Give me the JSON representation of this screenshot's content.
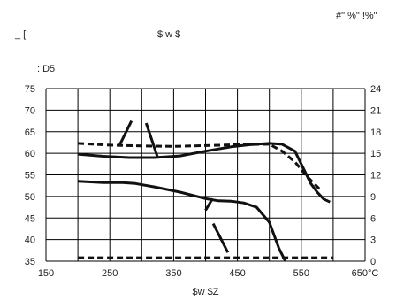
{
  "header": {
    "top_right": "#\" %\"     !%\"",
    "line2_left": "_ [",
    "line2_mid": "$   w $",
    "unit_label": ": D5",
    "right_axis_mark": "."
  },
  "chart_data": {
    "type": "line",
    "title": "",
    "xlabel": "$w $Z",
    "ylabel": ": D5",
    "x_ticks": [
      "150",
      "250",
      "350",
      "450",
      "550",
      "650°C"
    ],
    "y_left_ticks": [
      "75",
      "70",
      "65",
      "60",
      "55",
      "50",
      "45",
      "40",
      "35"
    ],
    "y_right_ticks": [
      "24",
      "21",
      "18",
      "15",
      "12",
      "9",
      "6",
      "3",
      "0"
    ],
    "xlim": [
      150,
      650
    ],
    "ylim_left": [
      35,
      75
    ],
    "ylim_right": [
      0,
      24
    ],
    "grid": true,
    "series": [
      {
        "style": "solid",
        "axis": "left",
        "x": [
          200,
          240,
          280,
          320,
          360,
          400,
          440,
          470,
          500,
          520,
          540,
          555,
          565,
          575,
          585,
          595
        ],
        "y": [
          59.8,
          59.3,
          59.0,
          59.0,
          59.4,
          60.5,
          61.5,
          62.0,
          62.3,
          62.1,
          60.5,
          56.0,
          53.0,
          51.0,
          49.4,
          48.7
        ]
      },
      {
        "style": "dashed",
        "axis": "left",
        "x": [
          200,
          250,
          300,
          350,
          400,
          450,
          500,
          520,
          540,
          560,
          580
        ],
        "y": [
          62.3,
          61.9,
          61.7,
          61.6,
          61.8,
          62.0,
          62.1,
          60.5,
          58.0,
          54.5,
          51.5
        ]
      },
      {
        "style": "solid",
        "axis": "left",
        "x": [
          200,
          240,
          270,
          290,
          320,
          360,
          400,
          420,
          440,
          460,
          480,
          500,
          510,
          515,
          520,
          525
        ],
        "y": [
          53.5,
          53.2,
          53.2,
          53.0,
          52.2,
          51.0,
          49.5,
          49.0,
          48.9,
          48.5,
          47.5,
          44.0,
          40.0,
          38.0,
          36.5,
          35.0
        ]
      },
      {
        "style": "dashed",
        "axis": "left",
        "x": [
          200,
          300,
          400,
          500,
          600
        ],
        "y": [
          35.8,
          35.8,
          35.8,
          35.8,
          35.8
        ]
      }
    ],
    "annotations": [
      {
        "x": [
          265,
          284
        ],
        "y": [
          61.8,
          67.5
        ],
        "style": "dash"
      },
      {
        "x": [
          307,
          325
        ],
        "y": [
          67.0,
          59.0
        ],
        "style": "dash"
      },
      {
        "x": [
          400,
          411
        ],
        "y": [
          46.8,
          49.5
        ],
        "style": "dash"
      },
      {
        "x": [
          412,
          435
        ],
        "y": [
          43.7,
          37.0
        ],
        "style": "dash"
      }
    ]
  }
}
